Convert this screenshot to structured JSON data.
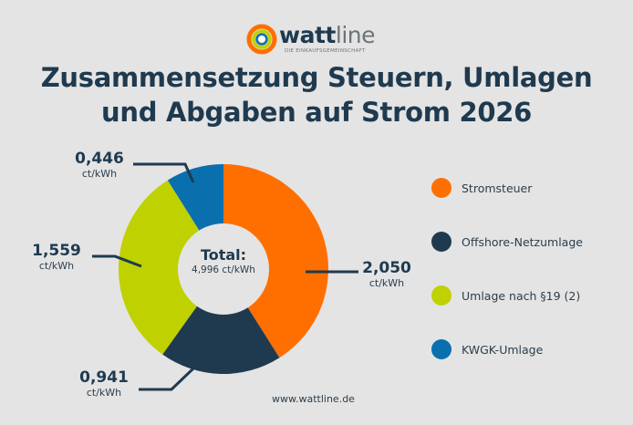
{
  "brand": {
    "name_bold": "watt",
    "name_light": "line",
    "tagline": "DIE EINKAUFSGEMEINSCHAFT",
    "colors": {
      "orange": "#ff6f00",
      "navy": "#1f3a4f",
      "green": "#bfd100",
      "blue": "#0a6fad",
      "background": "#e4e4e4"
    }
  },
  "title": {
    "line1": "Zusammensetzung Steuern, Umlagen",
    "line2": "und Abgaben auf Strom 2026"
  },
  "center": {
    "label": "Total:",
    "value": "4,996 ct/kWh"
  },
  "labels": [
    {
      "value": "2,050",
      "unit": "ct/kWh"
    },
    {
      "value": "0,941",
      "unit": "ct/kWh"
    },
    {
      "value": "1,559",
      "unit": "ct/kWh"
    },
    {
      "value": "0,446",
      "unit": "ct/kWh"
    }
  ],
  "legend": [
    {
      "label": "Stromsteuer",
      "color": "#ff6f00"
    },
    {
      "label": "Offshore-Netzumlage",
      "color": "#1f3a4f"
    },
    {
      "label": "Umlage nach §19 (2)",
      "color": "#bfd100"
    },
    {
      "label": "KWGK-Umlage",
      "color": "#0a6fad"
    }
  ],
  "footer": "www.wattline.de",
  "chart_data": {
    "type": "pie",
    "variant": "donut",
    "title": "Zusammensetzung Steuern, Umlagen und Abgaben auf Strom 2026",
    "unit": "ct/kWh",
    "categories": [
      "Stromsteuer",
      "Offshore-Netzumlage",
      "Umlage nach §19 (2)",
      "KWGK-Umlage"
    ],
    "values": [
      2.05,
      0.941,
      1.559,
      0.446
    ],
    "total": 4.996,
    "colors": [
      "#ff6f00",
      "#1f3a4f",
      "#bfd100",
      "#0a6fad"
    ],
    "start_angle": "12 o'clock, clockwise",
    "legend_position": "right"
  }
}
